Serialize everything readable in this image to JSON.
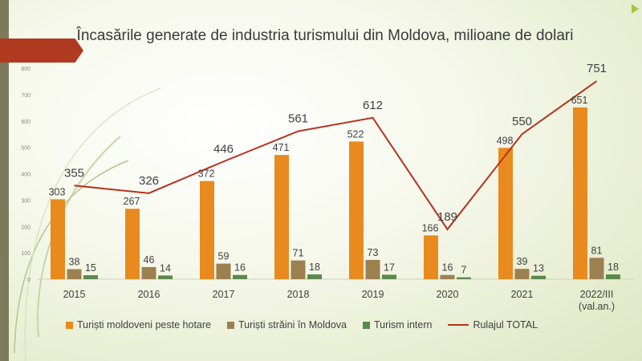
{
  "chart_data": {
    "type": "bar",
    "title": "Încasările generate de industria turismului din Moldova, milioane de dolari",
    "categories": [
      "2015",
      "2016",
      "2017",
      "2018",
      "2019",
      "2020",
      "2021",
      "2022/III (val.an.)"
    ],
    "y_ticks": [
      "0",
      "100",
      "200",
      "300",
      "400",
      "500",
      "600",
      "700",
      "800"
    ],
    "ylim": [
      0,
      800
    ],
    "legend_position": "bottom",
    "series": [
      {
        "name": "Turiști moldoveni peste hotare",
        "type": "bar",
        "color": "#e88a1d",
        "values": [
          303,
          267,
          372,
          471,
          522,
          166,
          498,
          651
        ]
      },
      {
        "name": "Turiști străini în Moldova",
        "type": "bar",
        "color": "#9c8050",
        "values": [
          38,
          46,
          59,
          71,
          73,
          16,
          39,
          81
        ]
      },
      {
        "name": "Turism intern",
        "type": "bar",
        "color": "#5a8a4a",
        "values": [
          15,
          14,
          16,
          18,
          17,
          7,
          13,
          18
        ]
      },
      {
        "name": "Rulajul TOTAL",
        "type": "line",
        "color": "#b5321c",
        "values": [
          355,
          326,
          446,
          561,
          612,
          189,
          550,
          751
        ]
      }
    ]
  }
}
